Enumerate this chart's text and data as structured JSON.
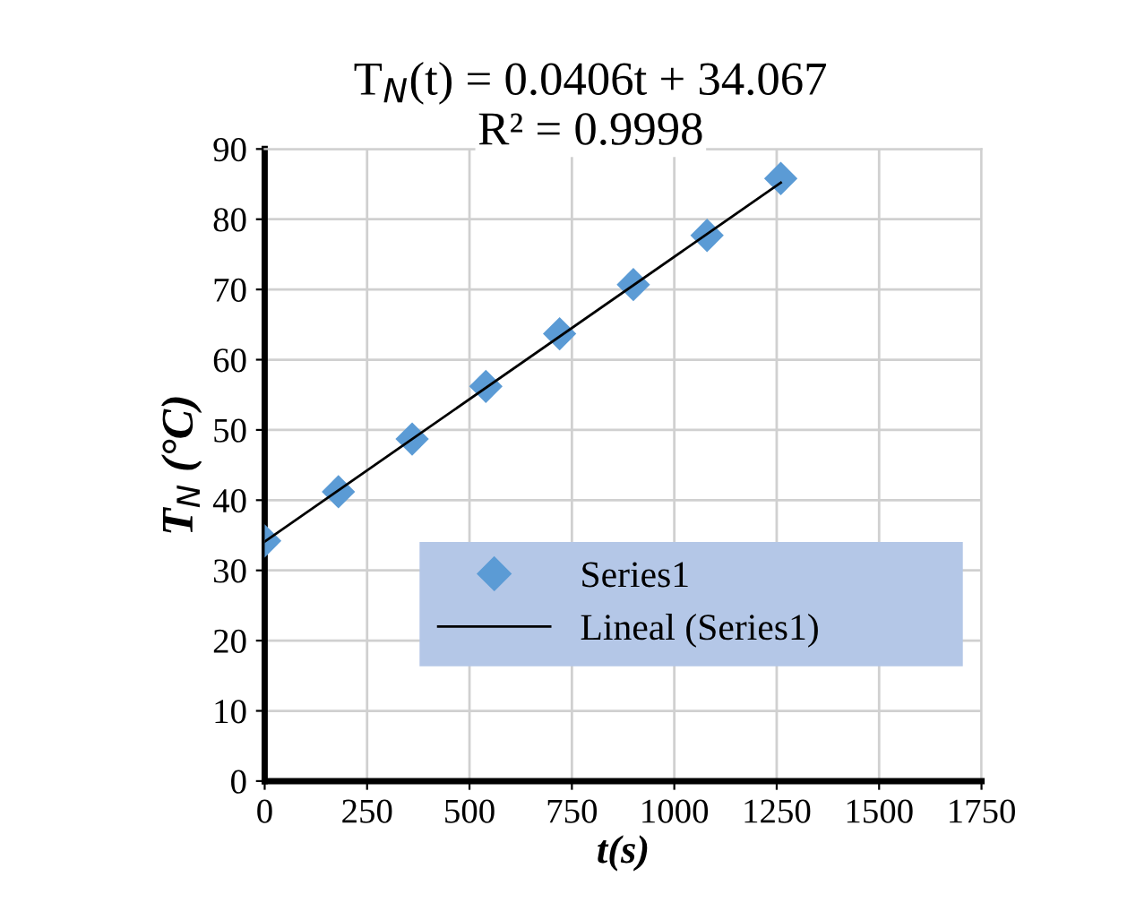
{
  "chart_data": {
    "type": "scatter",
    "title": "T$_{N}$(t) = 0.0406t + 34.067",
    "subtitle": "R² = 0.9998",
    "xlabel": "t(s)",
    "ylabel": "T$_{N}$ (°C)",
    "series": [
      {
        "name": "Series1",
        "color": "#5b9bd5",
        "marker": "diamond",
        "x": [
          0,
          180,
          360,
          540,
          720,
          900,
          1080,
          1260
        ],
        "values": [
          34.2,
          41.2,
          48.7,
          56.2,
          63.7,
          70.7,
          77.7,
          85.8
        ]
      },
      {
        "name": "Lineal (Series1)",
        "type": "line",
        "color": "#000000",
        "marker": "none",
        "line_style": "solid",
        "x": [
          0,
          1260
        ],
        "values": [
          34.1,
          85.2
        ]
      }
    ],
    "xlim": [
      0,
      1750
    ],
    "xticks": [
      0,
      250,
      500,
      750,
      1000,
      1250,
      1500,
      1750
    ],
    "ylim": [
      0,
      90
    ],
    "yticks": [
      0,
      10,
      20,
      30,
      40,
      50,
      60,
      70,
      80,
      90
    ],
    "grid": true,
    "legend": "bottom right"
  }
}
